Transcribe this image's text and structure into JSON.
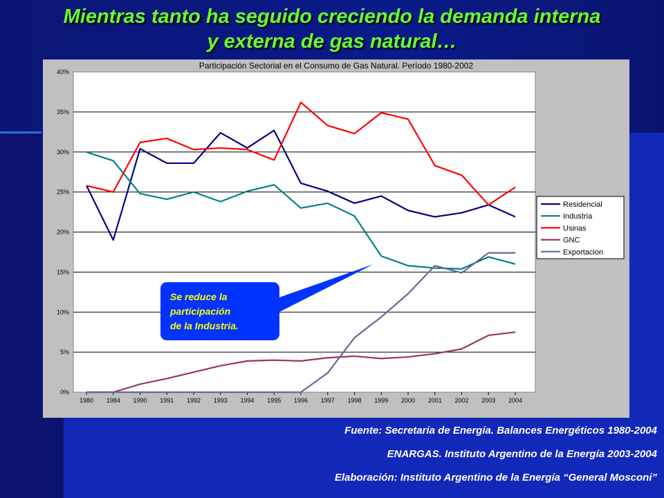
{
  "slide": {
    "title_line1": "Mientras tanto ha seguido creciendo la demanda interna",
    "title_line2": "y externa de gas natural…"
  },
  "callout": {
    "line1": "Se reduce la",
    "line2": "participación",
    "line3": "de la Industria."
  },
  "sources": {
    "line1": "Fuente: Secretaría de Energía. Balances Energéticos 1980-2004",
    "line2": "ENARGAS. Instituto Argentino de la Energía 2003-2004",
    "line3": "Elaboración: Instituto Argentino de la Energía “General Mosconi”"
  },
  "colors": {
    "title": "#66ff33",
    "callout_bg": "#0033ff",
    "callout_text": "#ffff00"
  },
  "chart_data": {
    "type": "line",
    "title": "Participación Sectorial en el Consumo de Gas Natural. Período 1980-2002",
    "categories": [
      "1980",
      "1984",
      "1990",
      "1991",
      "1992",
      "1993",
      "1994",
      "1995",
      "1996",
      "1997",
      "1998",
      "1999",
      "2000",
      "2001",
      "2002",
      "2003",
      "2004"
    ],
    "yticks": [
      "0%",
      "5%",
      "10%",
      "15%",
      "20%",
      "25%",
      "30%",
      "35%",
      "40%"
    ],
    "ylim": [
      0,
      40
    ],
    "grid": true,
    "legend_position": "right",
    "series": [
      {
        "name": "Residencial",
        "color": "#000080",
        "values": [
          25.8,
          19.0,
          30.4,
          28.6,
          28.6,
          32.4,
          30.5,
          32.7,
          26.1,
          25.1,
          23.6,
          24.5,
          22.7,
          21.9,
          22.4,
          23.4,
          21.9
        ]
      },
      {
        "name": "Industria",
        "color": "#008080",
        "values": [
          30.0,
          28.9,
          24.8,
          24.1,
          25.0,
          23.8,
          25.1,
          25.9,
          23.0,
          23.6,
          22.0,
          17.0,
          15.8,
          15.5,
          15.4,
          16.9,
          16.0
        ]
      },
      {
        "name": "Usinas",
        "color": "#ff0000",
        "values": [
          25.8,
          25.0,
          31.2,
          31.7,
          30.3,
          30.5,
          30.3,
          29.0,
          36.2,
          33.3,
          32.3,
          34.9,
          34.1,
          28.3,
          27.1,
          23.4,
          25.6
        ]
      },
      {
        "name": "GNC",
        "color": "#993366",
        "values": [
          0.0,
          0.0,
          1.0,
          1.7,
          2.5,
          3.3,
          3.9,
          4.0,
          3.9,
          4.3,
          4.5,
          4.2,
          4.4,
          4.8,
          5.4,
          7.1,
          7.5
        ]
      },
      {
        "name": "Exportacion",
        "color": "#666699",
        "values": [
          0.0,
          0.0,
          0.0,
          0.0,
          0.0,
          0.0,
          0.0,
          0.0,
          0.0,
          2.4,
          6.8,
          9.4,
          12.3,
          15.8,
          14.9,
          17.4,
          17.4
        ]
      }
    ]
  }
}
